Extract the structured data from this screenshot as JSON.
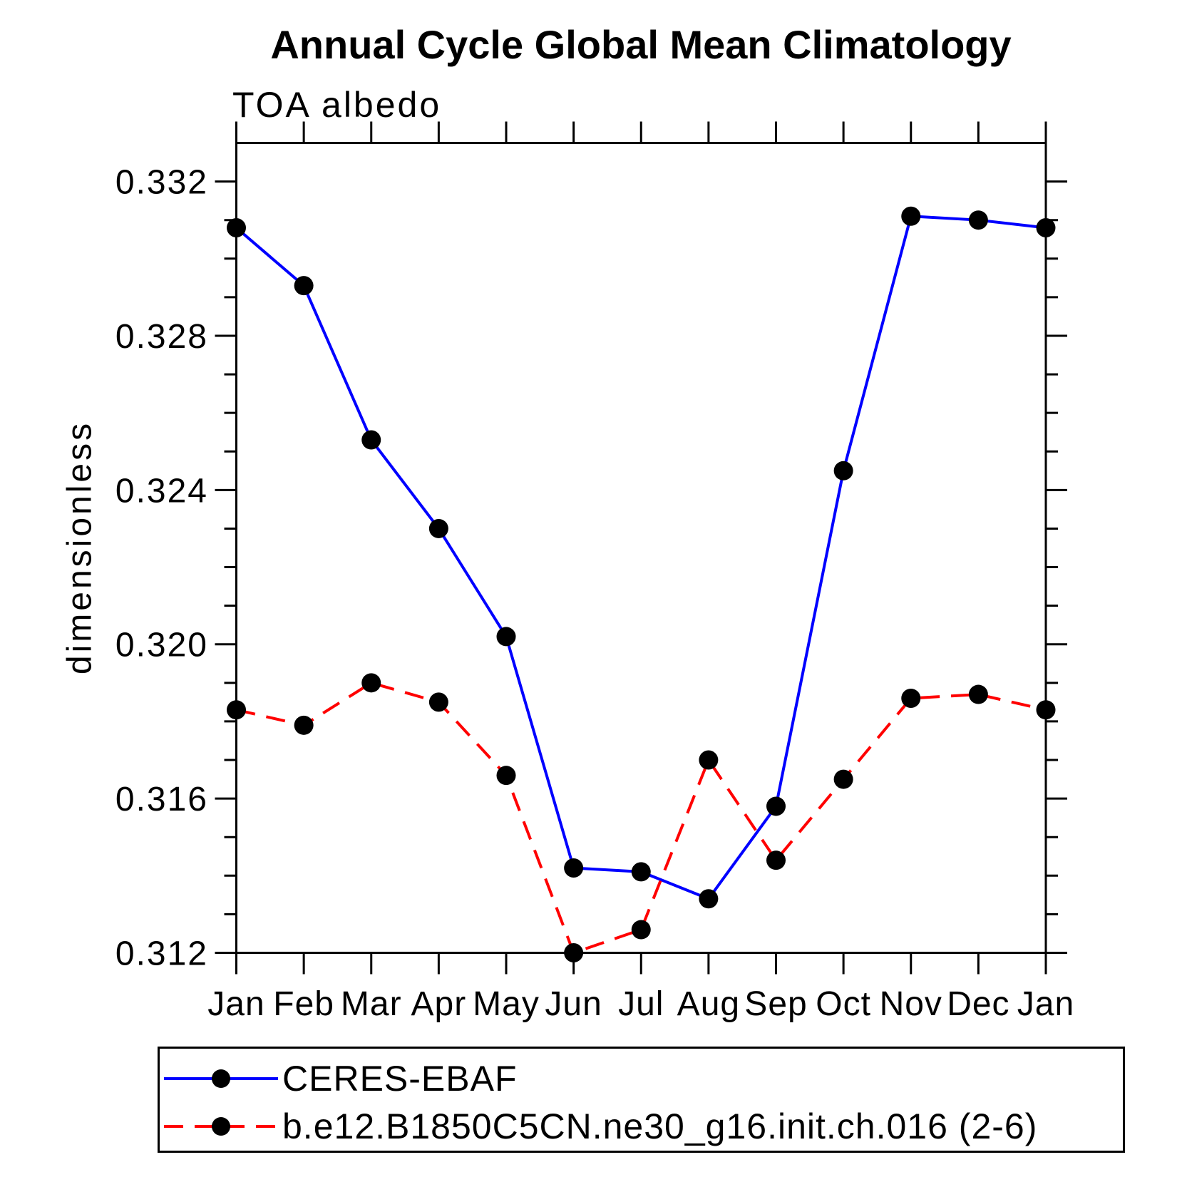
{
  "chart_data": {
    "type": "line",
    "title": "Annual Cycle Global Mean Climatology",
    "subtitle": "TOA albedo",
    "xlabel": "",
    "ylabel": "dimensionless",
    "x_categories": [
      "Jan",
      "Feb",
      "Mar",
      "Apr",
      "May",
      "Jun",
      "Jul",
      "Aug",
      "Sep",
      "Oct",
      "Nov",
      "Dec",
      "Jan"
    ],
    "y_tick_labels": [
      "0.312",
      "0.316",
      "0.320",
      "0.324",
      "0.328",
      "0.332"
    ],
    "y_ticks_major": [
      0.312,
      0.316,
      0.32,
      0.324,
      0.328,
      0.332
    ],
    "y_minor_step": 0.001,
    "ylim": [
      0.312,
      0.333
    ],
    "grid": false,
    "legend_position": "bottom-left-box",
    "axis_color": "#000000",
    "marker_color": "#000000",
    "series": [
      {
        "name": "CERES-EBAF",
        "color": "#0000ff",
        "line_style": "solid",
        "marker": "filled-circle",
        "values": [
          0.3308,
          0.3293,
          0.3253,
          0.323,
          0.3202,
          0.3142,
          0.3141,
          0.3134,
          0.3158,
          0.3245,
          0.3311,
          0.331,
          0.3308
        ]
      },
      {
        "name": "b.e12.B1850C5CN.ne30_g16.init.ch.016 (2-6)",
        "color": "#ff0000",
        "line_style": "dashed",
        "marker": "filled-circle",
        "values": [
          0.3183,
          0.3179,
          0.319,
          0.3185,
          0.3166,
          0.312,
          0.3126,
          0.317,
          0.3144,
          0.3165,
          0.3186,
          0.3187,
          0.3183
        ]
      }
    ]
  }
}
